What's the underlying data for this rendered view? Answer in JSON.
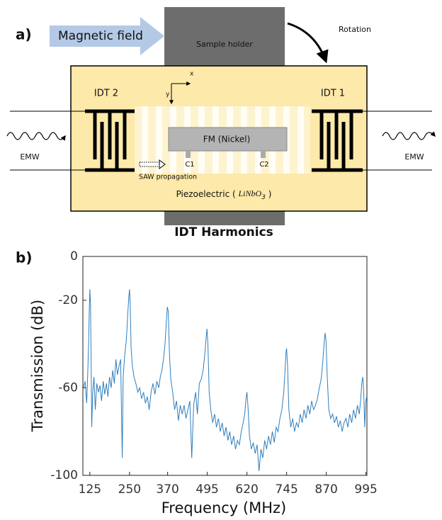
{
  "diagram": {
    "panel_a": "a)",
    "panel_b": "b)",
    "magnetic_field": "Magnetic field",
    "sample_holder": "Sample holder",
    "rotation": "Rotation",
    "idt2": "IDT 2",
    "idt1": "IDT 1",
    "emw_left": "EMW",
    "emw_right": "EMW",
    "fm": "FM (Nickel)",
    "c1": "C1",
    "c2": "C2",
    "saw": "SAW propagation",
    "axis_x": "x",
    "axis_y": "y",
    "substrate": [
      "Piezoelectric (",
      "LiNbO",
      "3",
      ")"
    ]
  },
  "chart_data": {
    "type": "line",
    "title": "IDT Harmonics",
    "x_label": "Frequency (MHz)",
    "y_label": "Transmission (dB)",
    "color": "#2f7ebd",
    "xlim": [
      103,
      998
    ],
    "ylim": [
      -100,
      0
    ],
    "xticks": [
      125,
      250,
      370,
      495,
      620,
      745,
      870,
      995
    ],
    "yticks": [
      0,
      -20,
      -60,
      -100
    ],
    "x": [
      105,
      110,
      115,
      118,
      121,
      123,
      125,
      127,
      129,
      131,
      134,
      138,
      142,
      147,
      152,
      157,
      162,
      167,
      172,
      177,
      182,
      187,
      192,
      197,
      202,
      207,
      212,
      217,
      222,
      227,
      230,
      235,
      240,
      245,
      248,
      250,
      252,
      255,
      259,
      264,
      270,
      276,
      282,
      288,
      294,
      300,
      306,
      312,
      318,
      324,
      330,
      336,
      342,
      347,
      352,
      357,
      362,
      366,
      369,
      372,
      376,
      380,
      386,
      392,
      398,
      404,
      410,
      416,
      422,
      428,
      434,
      440,
      446,
      452,
      458,
      464,
      470,
      476,
      482,
      487,
      491,
      494,
      497,
      501,
      506,
      512,
      518,
      524,
      530,
      536,
      542,
      548,
      554,
      560,
      566,
      572,
      578,
      584,
      590,
      596,
      602,
      608,
      613,
      617,
      620,
      623,
      628,
      634,
      640,
      646,
      652,
      658,
      664,
      670,
      676,
      682,
      688,
      694,
      700,
      706,
      712,
      718,
      724,
      730,
      736,
      740,
      743,
      745,
      748,
      752,
      758,
      764,
      770,
      776,
      782,
      788,
      794,
      800,
      806,
      812,
      818,
      824,
      830,
      836,
      842,
      848,
      854,
      859,
      863,
      866,
      869,
      873,
      878,
      884,
      890,
      896,
      902,
      908,
      914,
      920,
      926,
      932,
      938,
      944,
      950,
      956,
      962,
      968,
      974,
      978,
      982,
      985,
      988,
      991,
      994,
      997
    ],
    "values": [
      -60,
      -57,
      -67,
      -55,
      -40,
      -25,
      -15,
      -22,
      -45,
      -78,
      -62,
      -55,
      -70,
      -58,
      -62,
      -59,
      -66,
      -57,
      -63,
      -58,
      -64,
      -55,
      -60,
      -52,
      -58,
      -47,
      -54,
      -50,
      -47,
      -92,
      -55,
      -45,
      -38,
      -25,
      -18,
      -15,
      -22,
      -42,
      -50,
      -55,
      -58,
      -62,
      -60,
      -65,
      -62,
      -67,
      -64,
      -70,
      -62,
      -58,
      -63,
      -57,
      -60,
      -55,
      -52,
      -47,
      -40,
      -30,
      -23,
      -25,
      -45,
      -56,
      -62,
      -70,
      -66,
      -75,
      -68,
      -72,
      -68,
      -74,
      -70,
      -66,
      -92,
      -68,
      -62,
      -72,
      -58,
      -56,
      -52,
      -45,
      -38,
      -33,
      -40,
      -62,
      -70,
      -76,
      -72,
      -78,
      -74,
      -80,
      -76,
      -82,
      -78,
      -84,
      -80,
      -86,
      -82,
      -88,
      -84,
      -86,
      -80,
      -76,
      -72,
      -65,
      -62,
      -68,
      -82,
      -88,
      -85,
      -90,
      -86,
      -98,
      -88,
      -92,
      -84,
      -88,
      -82,
      -86,
      -80,
      -85,
      -78,
      -80,
      -74,
      -70,
      -62,
      -52,
      -44,
      -42,
      -50,
      -70,
      -78,
      -74,
      -80,
      -76,
      -78,
      -72,
      -76,
      -70,
      -74,
      -68,
      -72,
      -66,
      -70,
      -68,
      -65,
      -60,
      -56,
      -48,
      -40,
      -35,
      -38,
      -55,
      -70,
      -74,
      -72,
      -76,
      -73,
      -78,
      -75,
      -80,
      -76,
      -74,
      -78,
      -72,
      -76,
      -70,
      -74,
      -68,
      -72,
      -66,
      -58,
      -55,
      -62,
      -78,
      -67,
      -64
    ]
  }
}
